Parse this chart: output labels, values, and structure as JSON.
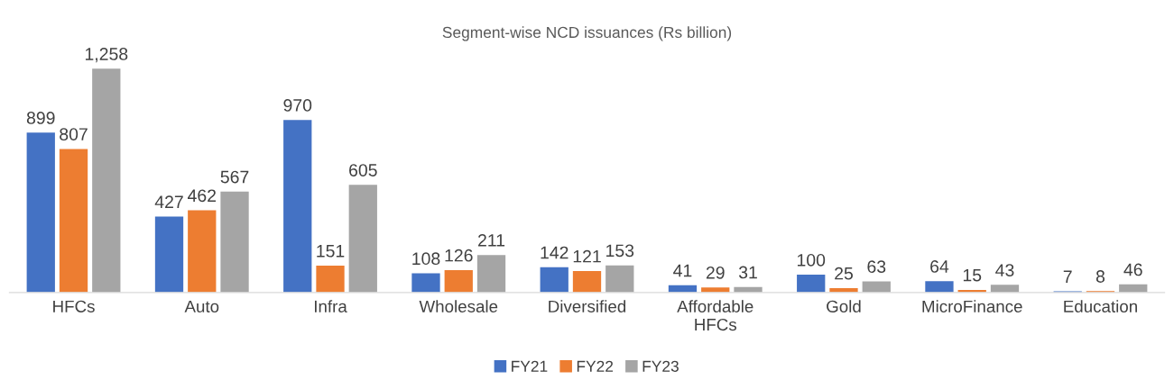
{
  "chart_data": {
    "type": "bar",
    "title": "Segment-wise NCD issuances (Rs billion)",
    "categories": [
      "HFCs",
      "Auto",
      "Infra",
      "Wholesale",
      "Diversified",
      "Affordable\nHFCs",
      "Gold",
      "MicroFinance",
      "Education"
    ],
    "series": [
      {
        "name": "FY21",
        "color": "#4472c4",
        "values": [
          899,
          427,
          970,
          108,
          142,
          41,
          100,
          64,
          7
        ],
        "value_labels": [
          "899",
          "427",
          "970",
          "108",
          "142",
          "41",
          "100",
          "64",
          "7"
        ]
      },
      {
        "name": "FY22",
        "color": "#ed7d31",
        "values": [
          807,
          462,
          151,
          126,
          121,
          29,
          25,
          15,
          8
        ],
        "value_labels": [
          "807",
          "462",
          "151",
          "126",
          "121",
          "29",
          "25",
          "15",
          "8"
        ]
      },
      {
        "name": "FY23",
        "color": "#a5a5a5",
        "values": [
          1258,
          567,
          605,
          211,
          153,
          31,
          63,
          43,
          46
        ],
        "value_labels": [
          "1,258",
          "567",
          "605",
          "211",
          "153",
          "31",
          "63",
          "43",
          "46"
        ]
      }
    ],
    "legend": "bottom",
    "grid": false
  }
}
